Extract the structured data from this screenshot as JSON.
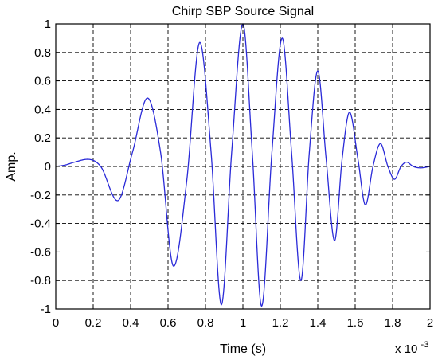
{
  "chart_data": {
    "type": "line",
    "title": "Chirp SBP Source Signal",
    "xlabel": "Time (s)",
    "ylabel": "Amp.",
    "x_multiplier_label": "x 10",
    "x_multiplier_exponent": "-3",
    "xlim": [
      0,
      2
    ],
    "ylim": [
      -1,
      1
    ],
    "x_ticks": [
      0,
      0.2,
      0.4,
      0.6,
      0.8,
      1,
      1.2,
      1.4,
      1.6,
      1.8,
      2
    ],
    "x_tick_labels": [
      "0",
      "0.2",
      "0.4",
      "0.6",
      "0.8",
      "1",
      "1.2",
      "1.4",
      "1.6",
      "1.8",
      "2"
    ],
    "y_ticks": [
      -1,
      -0.8,
      -0.6,
      -0.4,
      -0.2,
      0,
      0.2,
      0.4,
      0.6,
      0.8,
      1
    ],
    "y_tick_labels": [
      "-1",
      "-0.8",
      "-0.6",
      "-0.4",
      "-0.2",
      "0",
      "0.2",
      "0.4",
      "0.6",
      "0.8",
      "1"
    ],
    "grid": true,
    "line_color": "#2a2ad8",
    "series": [
      {
        "x": [
          0,
          0.05,
          0.1,
          0.17,
          0.24,
          0.33,
          0.41,
          0.49,
          0.56,
          0.63,
          0.7,
          0.77,
          0.83,
          0.885,
          0.94,
          1.0,
          1.05,
          1.1,
          1.155,
          1.21,
          1.26,
          1.31,
          1.355,
          1.4,
          1.445,
          1.49,
          1.53,
          1.57,
          1.615,
          1.655,
          1.695,
          1.735,
          1.775,
          1.81,
          1.845,
          1.875,
          1.91,
          1.95,
          2.0
        ],
        "y": [
          0,
          0.01,
          0.03,
          0.05,
          0,
          -0.24,
          0.1,
          0.48,
          0.1,
          -0.7,
          -0.1,
          0.87,
          0.1,
          -0.97,
          0.1,
          1.0,
          0.1,
          -0.98,
          0.1,
          0.9,
          0.1,
          -0.8,
          0.1,
          0.67,
          0.05,
          -0.52,
          0.05,
          0.38,
          0.05,
          -0.27,
          0,
          0.16,
          0,
          -0.09,
          0,
          0.03,
          0,
          -0.01,
          0
        ]
      }
    ]
  }
}
